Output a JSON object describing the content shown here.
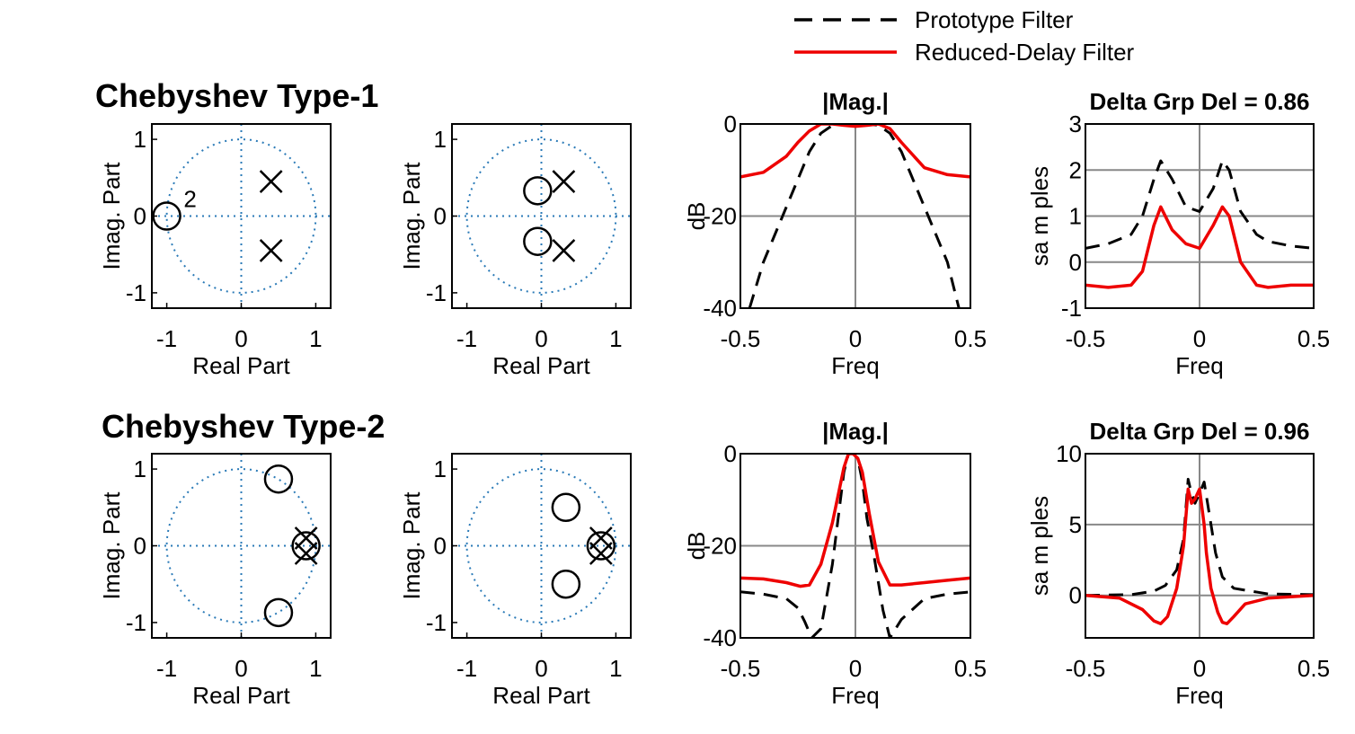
{
  "legend": {
    "placement": "top-right",
    "entries": [
      {
        "label": "Prototype Filter",
        "color": "#000000",
        "style": "dashed"
      },
      {
        "label": "Reduced-Delay Filter",
        "color": "#ee0000",
        "style": "solid"
      }
    ]
  },
  "rows": [
    {
      "title": "Chebyshev Type-1"
    },
    {
      "title": "Chebyshev Type-2"
    }
  ],
  "chart_data": [
    {
      "type": "scatter",
      "subtype": "pole-zero",
      "title": "",
      "xlabel": "Real Part",
      "ylabel": "Imag. Part",
      "xlim": [
        -1.2,
        1.2
      ],
      "ylim": [
        -1.2,
        1.2
      ],
      "xticks": [
        "-1",
        "0",
        "1"
      ],
      "yticks": [
        "-1",
        "0",
        "1"
      ],
      "zeros": [
        {
          "re": -1.0,
          "im": 0.0,
          "multiplicity": "2"
        }
      ],
      "poles": [
        {
          "re": 0.4,
          "im": 0.45
        },
        {
          "re": 0.4,
          "im": -0.45
        }
      ]
    },
    {
      "type": "scatter",
      "subtype": "pole-zero",
      "title": "",
      "xlabel": "Real Part",
      "ylabel": "Imag. Part",
      "xlim": [
        -1.2,
        1.2
      ],
      "ylim": [
        -1.2,
        1.2
      ],
      "xticks": [
        "-1",
        "0",
        "1"
      ],
      "yticks": [
        "-1",
        "0",
        "1"
      ],
      "zeros": [
        {
          "re": -0.05,
          "im": 0.33
        },
        {
          "re": -0.05,
          "im": -0.33
        }
      ],
      "poles": [
        {
          "re": 0.3,
          "im": 0.45
        },
        {
          "re": 0.3,
          "im": -0.45
        }
      ]
    },
    {
      "type": "line",
      "title": "|Mag.|",
      "xlabel": "Freq",
      "ylabel": "dB",
      "xlim": [
        -0.5,
        0.5
      ],
      "ylim": [
        -40,
        0
      ],
      "xticks": [
        "-0.5",
        "0",
        "0.5"
      ],
      "yticks": [
        "-40",
        "-20",
        "0"
      ],
      "series": [
        {
          "name": "Prototype Filter",
          "x": [
            -0.46,
            -0.4,
            -0.3,
            -0.2,
            -0.15,
            -0.1,
            -0.05,
            0,
            0.05,
            0.1,
            0.15,
            0.2,
            0.3,
            0.4,
            0.45
          ],
          "y": [
            -40,
            -30,
            -18,
            -6,
            -2,
            -0.3,
            0,
            0,
            0,
            -0.3,
            -2,
            -6,
            -18,
            -30,
            -40
          ]
        },
        {
          "name": "Reduced-Delay Filter",
          "x": [
            -0.5,
            -0.4,
            -0.3,
            -0.25,
            -0.2,
            -0.15,
            -0.1,
            -0.05,
            0,
            0.05,
            0.1,
            0.15,
            0.2,
            0.3,
            0.4,
            0.5
          ],
          "y": [
            -11.5,
            -10.5,
            -7,
            -4,
            -1.5,
            0,
            0,
            -0.3,
            -0.5,
            -0.3,
            0,
            -1,
            -4,
            -9.5,
            -11,
            -11.5
          ]
        }
      ]
    },
    {
      "type": "line",
      "title": "Delta Grp Del = 0.86",
      "xlabel": "Freq",
      "ylabel": "sa m ples",
      "xlim": [
        -0.5,
        0.5
      ],
      "ylim": [
        -1,
        3
      ],
      "xticks": [
        "-0.5",
        "0",
        "0.5"
      ],
      "yticks": [
        "-1",
        "0",
        "1",
        "2",
        "3"
      ],
      "series": [
        {
          "name": "Prototype Filter",
          "x": [
            -0.5,
            -0.4,
            -0.3,
            -0.25,
            -0.2,
            -0.17,
            -0.12,
            -0.06,
            0,
            0.06,
            0.1,
            0.13,
            0.18,
            0.25,
            0.3,
            0.4,
            0.5
          ],
          "y": [
            0.3,
            0.4,
            0.6,
            1.0,
            1.8,
            2.2,
            1.8,
            1.2,
            1.1,
            1.6,
            2.2,
            2.0,
            1.1,
            0.6,
            0.45,
            0.35,
            0.3
          ]
        },
        {
          "name": "Reduced-Delay Filter",
          "x": [
            -0.5,
            -0.4,
            -0.3,
            -0.25,
            -0.2,
            -0.17,
            -0.12,
            -0.06,
            0,
            0.06,
            0.1,
            0.13,
            0.18,
            0.25,
            0.3,
            0.4,
            0.5
          ],
          "y": [
            -0.5,
            -0.55,
            -0.5,
            -0.2,
            0.8,
            1.2,
            0.7,
            0.4,
            0.3,
            0.8,
            1.2,
            1.0,
            0.0,
            -0.5,
            -0.55,
            -0.5,
            -0.5
          ]
        }
      ]
    },
    {
      "type": "scatter",
      "subtype": "pole-zero",
      "title": "",
      "xlabel": "Real Part",
      "ylabel": "Imag. Part",
      "xlim": [
        -1.2,
        1.2
      ],
      "ylim": [
        -1.2,
        1.2
      ],
      "xticks": [
        "-1",
        "0",
        "1"
      ],
      "yticks": [
        "-1",
        "0",
        "1"
      ],
      "zeros": [
        {
          "re": 0.5,
          "im": 0.87
        },
        {
          "re": 0.5,
          "im": -0.87
        },
        {
          "re": 0.87,
          "im": 0.0
        }
      ],
      "poles": [
        {
          "re": 0.87,
          "im": 0.1
        },
        {
          "re": 0.87,
          "im": -0.1
        }
      ]
    },
    {
      "type": "scatter",
      "subtype": "pole-zero",
      "title": "",
      "xlabel": "Real Part",
      "ylabel": "Imag. Part",
      "xlim": [
        -1.2,
        1.2
      ],
      "ylim": [
        -1.2,
        1.2
      ],
      "xticks": [
        "-1",
        "0",
        "1"
      ],
      "yticks": [
        "-1",
        "0",
        "1"
      ],
      "zeros": [
        {
          "re": 0.33,
          "im": 0.5
        },
        {
          "re": 0.33,
          "im": -0.5
        },
        {
          "re": 0.8,
          "im": 0.0
        }
      ],
      "poles": [
        {
          "re": 0.8,
          "im": 0.1
        },
        {
          "re": 0.8,
          "im": -0.1
        }
      ]
    },
    {
      "type": "line",
      "title": "|Mag.|",
      "xlabel": "Freq",
      "ylabel": "dB",
      "xlim": [
        -0.5,
        0.5
      ],
      "ylim": [
        -40,
        0
      ],
      "xticks": [
        "-0.5",
        "0",
        "0.5"
      ],
      "yticks": [
        "-40",
        "-20",
        "0"
      ],
      "series": [
        {
          "name": "Prototype Filter",
          "x": [
            -0.5,
            -0.4,
            -0.3,
            -0.25,
            -0.22,
            -0.19,
            -0.15,
            -0.1,
            -0.05,
            -0.03,
            -0.01,
            0.01,
            0.03,
            0.05,
            0.08,
            0.12,
            0.15,
            0.2,
            0.3,
            0.4,
            0.5
          ],
          "y": [
            -30,
            -30.5,
            -31.5,
            -33.5,
            -36.5,
            -40,
            -38,
            -24,
            -4,
            0,
            0,
            -1,
            -6,
            -14,
            -22,
            -34,
            -40,
            -36,
            -31.5,
            -30.5,
            -30
          ]
        },
        {
          "name": "Reduced-Delay Filter",
          "x": [
            -0.5,
            -0.4,
            -0.3,
            -0.24,
            -0.2,
            -0.15,
            -0.1,
            -0.05,
            -0.03,
            -0.01,
            0.01,
            0.03,
            0.06,
            0.1,
            0.15,
            0.2,
            0.3,
            0.4,
            0.5
          ],
          "y": [
            -27,
            -27.2,
            -28,
            -28.8,
            -28.5,
            -24,
            -15,
            -3,
            0,
            0,
            -1,
            -4,
            -13,
            -23.5,
            -28.5,
            -28.5,
            -28,
            -27.5,
            -27
          ]
        }
      ]
    },
    {
      "type": "line",
      "title": "Delta Grp Del = 0.96",
      "xlabel": "Freq",
      "ylabel": "sa m ples",
      "xlim": [
        -0.5,
        0.5
      ],
      "ylim": [
        -3,
        10
      ],
      "xticks": [
        "-0.5",
        "0",
        "0.5"
      ],
      "yticks": [
        "0",
        "5",
        "10"
      ],
      "series": [
        {
          "name": "Prototype Filter",
          "x": [
            -0.5,
            -0.3,
            -0.2,
            -0.15,
            -0.1,
            -0.07,
            -0.05,
            -0.04,
            -0.02,
            0,
            0.02,
            0.04,
            0.07,
            0.1,
            0.15,
            0.3,
            0.5
          ],
          "y": [
            0,
            0.05,
            0.3,
            0.7,
            1.8,
            4,
            8.2,
            7.5,
            6.5,
            7.2,
            8.0,
            6,
            3,
            1.3,
            0.5,
            0.1,
            0.05
          ]
        },
        {
          "name": "Reduced-Delay Filter",
          "x": [
            -0.5,
            -0.35,
            -0.25,
            -0.2,
            -0.17,
            -0.14,
            -0.1,
            -0.07,
            -0.05,
            -0.035,
            -0.02,
            0,
            0.02,
            0.03,
            0.05,
            0.08,
            0.1,
            0.12,
            0.15,
            0.2,
            0.3,
            0.5
          ],
          "y": [
            0,
            -0.2,
            -1,
            -1.8,
            -2,
            -1.5,
            0.5,
            3.5,
            7.5,
            6.5,
            6.8,
            7.5,
            5,
            3,
            0.5,
            -1.2,
            -1.9,
            -2,
            -1.5,
            -0.6,
            -0.2,
            0
          ]
        }
      ]
    }
  ]
}
